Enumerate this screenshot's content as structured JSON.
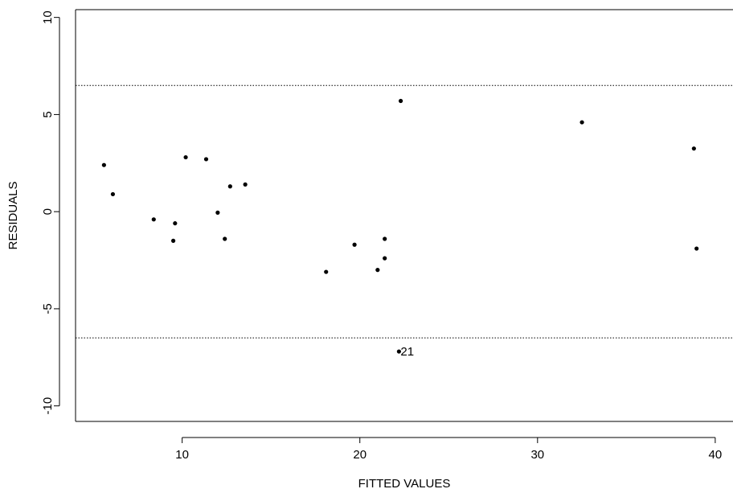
{
  "chart_data": {
    "type": "scatter",
    "title": "",
    "xlabel": "FITTED VALUES",
    "ylabel": "RESIDUALS",
    "xlim": [
      4.0,
      41.0
    ],
    "ylim": [
      -10.8,
      10.4
    ],
    "x_ticks": [
      10,
      20,
      30,
      40
    ],
    "x_tick_labels": [
      "10",
      "20",
      "30",
      "40"
    ],
    "y_ticks": [
      -10,
      -5,
      0,
      5,
      10
    ],
    "y_tick_labels": [
      "-10",
      "-5",
      "0",
      "5",
      "10"
    ],
    "grid": false,
    "reference_lines": [
      6.5,
      -6.5
    ],
    "points": [
      {
        "x": 5.6,
        "y": 2.4
      },
      {
        "x": 6.1,
        "y": 0.9
      },
      {
        "x": 8.4,
        "y": -0.4
      },
      {
        "x": 9.5,
        "y": -1.5
      },
      {
        "x": 9.6,
        "y": -0.6
      },
      {
        "x": 10.2,
        "y": 2.8
      },
      {
        "x": 11.35,
        "y": 2.7
      },
      {
        "x": 12.0,
        "y": -0.05
      },
      {
        "x": 12.4,
        "y": -1.4
      },
      {
        "x": 12.7,
        "y": 1.3
      },
      {
        "x": 13.55,
        "y": 1.4
      },
      {
        "x": 18.1,
        "y": -3.1
      },
      {
        "x": 19.7,
        "y": -1.7
      },
      {
        "x": 21.0,
        "y": -3.0
      },
      {
        "x": 21.4,
        "y": -1.4
      },
      {
        "x": 21.4,
        "y": -2.4
      },
      {
        "x": 22.2,
        "y": -7.2,
        "label": "21"
      },
      {
        "x": 22.3,
        "y": 5.7
      },
      {
        "x": 32.5,
        "y": 4.6
      },
      {
        "x": 38.8,
        "y": 3.25
      },
      {
        "x": 38.95,
        "y": -1.9
      }
    ]
  }
}
